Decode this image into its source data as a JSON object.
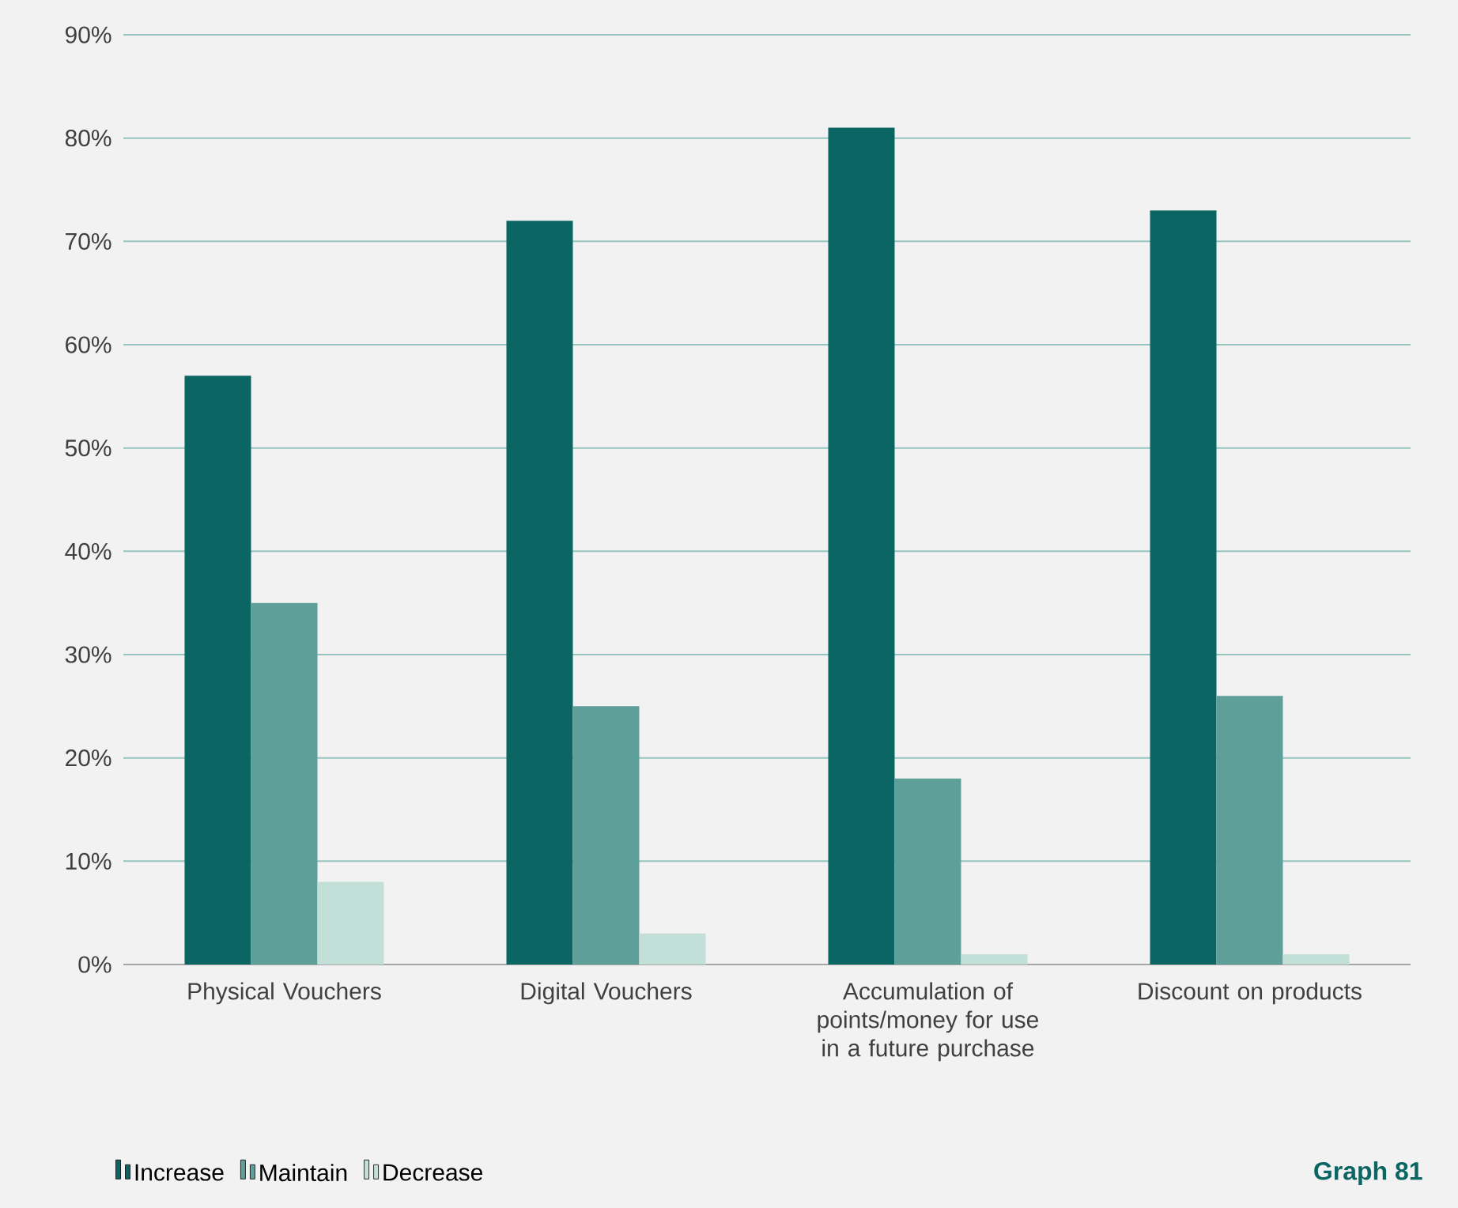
{
  "chart_data": {
    "type": "bar",
    "categories": [
      "Physical Vouchers",
      "Digital Vouchers",
      "Accumulation of points/money for use in a future purchase",
      "Discount on products"
    ],
    "series": [
      {
        "name": "Increase",
        "color": "#0b6663",
        "values": [
          57,
          72,
          81,
          73
        ]
      },
      {
        "name": "Maintain",
        "color": "#5f9f99",
        "values": [
          35,
          25,
          18,
          26
        ]
      },
      {
        "name": "Decrease",
        "color": "#c2e0d8",
        "values": [
          8,
          3,
          1,
          1
        ]
      }
    ],
    "ylim": [
      0,
      90
    ],
    "yticks": [
      {
        "value": 0,
        "label": "0%"
      },
      {
        "value": 10,
        "label": "10%"
      },
      {
        "value": 20,
        "label": "20%"
      },
      {
        "value": 30,
        "label": "30%"
      },
      {
        "value": 40,
        "label": "40%"
      },
      {
        "value": 50,
        "label": "50%"
      },
      {
        "value": 60,
        "label": "60%"
      },
      {
        "value": 70,
        "label": "70%"
      },
      {
        "value": 80,
        "label": "80%"
      },
      {
        "value": 90,
        "label": "90%"
      }
    ],
    "grid": "y",
    "legend": "bottom",
    "annotations": [
      "Graph 81"
    ]
  }
}
